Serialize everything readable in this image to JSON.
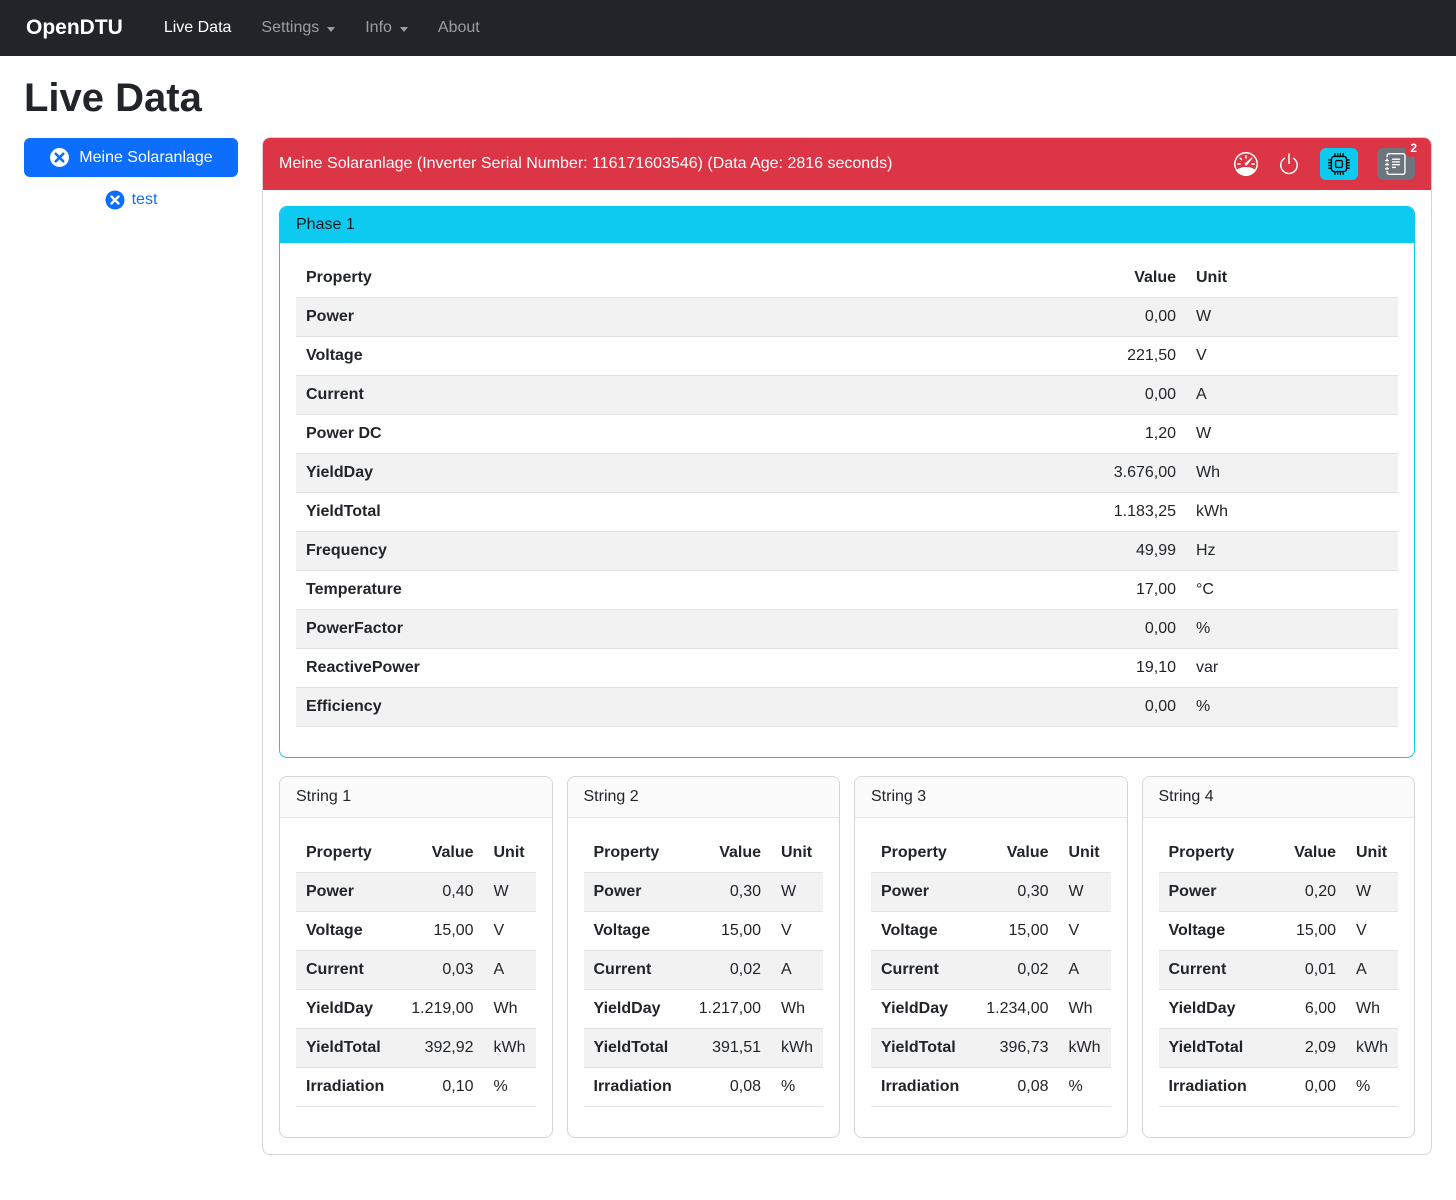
{
  "colors": {
    "navbar_bg": "#212529",
    "primary": "#0d6efd",
    "danger": "#dc3545",
    "info": "#0dcaf0",
    "secondary": "#6c757d",
    "stripe": "#f2f2f2"
  },
  "navbar": {
    "brand": "OpenDTU",
    "items": [
      {
        "label": "Live Data",
        "active": true,
        "dropdown": false
      },
      {
        "label": "Settings",
        "active": false,
        "dropdown": true
      },
      {
        "label": "Info",
        "active": false,
        "dropdown": true
      },
      {
        "label": "About",
        "active": false,
        "dropdown": false
      }
    ]
  },
  "page": {
    "title": "Live Data"
  },
  "sidebar": {
    "inverters": [
      {
        "label": "Meine Solaranlage",
        "selected": true,
        "icon": "x-circle-fill-icon"
      },
      {
        "label": "test",
        "selected": false,
        "icon": "x-circle-fill-icon"
      }
    ]
  },
  "inverter": {
    "header": "Meine Solaranlage (Inverter Serial Number: 116171603546) (Data Age: 2816 seconds)",
    "toolbar_icons": [
      "speedometer-icon",
      "power-icon",
      "cpu-icon",
      "journal-text-icon"
    ],
    "event_count": "2"
  },
  "phase": {
    "title": "Phase 1",
    "columns": {
      "property": "Property",
      "value": "Value",
      "unit": "Unit"
    },
    "rows": [
      {
        "property": "Power",
        "value": "0,00",
        "unit": "W"
      },
      {
        "property": "Voltage",
        "value": "221,50",
        "unit": "V"
      },
      {
        "property": "Current",
        "value": "0,00",
        "unit": "A"
      },
      {
        "property": "Power DC",
        "value": "1,20",
        "unit": "W"
      },
      {
        "property": "YieldDay",
        "value": "3.676,00",
        "unit": "Wh"
      },
      {
        "property": "YieldTotal",
        "value": "1.183,25",
        "unit": "kWh"
      },
      {
        "property": "Frequency",
        "value": "49,99",
        "unit": "Hz"
      },
      {
        "property": "Temperature",
        "value": "17,00",
        "unit": "°C"
      },
      {
        "property": "PowerFactor",
        "value": "0,00",
        "unit": "%"
      },
      {
        "property": "ReactivePower",
        "value": "19,10",
        "unit": "var"
      },
      {
        "property": "Efficiency",
        "value": "0,00",
        "unit": "%"
      }
    ]
  },
  "strings": [
    {
      "title": "String 1",
      "columns": {
        "property": "Property",
        "value": "Value",
        "unit": "Unit"
      },
      "rows": [
        {
          "property": "Power",
          "value": "0,40",
          "unit": "W"
        },
        {
          "property": "Voltage",
          "value": "15,00",
          "unit": "V"
        },
        {
          "property": "Current",
          "value": "0,03",
          "unit": "A"
        },
        {
          "property": "YieldDay",
          "value": "1.219,00",
          "unit": "Wh"
        },
        {
          "property": "YieldTotal",
          "value": "392,92",
          "unit": "kWh"
        },
        {
          "property": "Irradiation",
          "value": "0,10",
          "unit": "%"
        }
      ]
    },
    {
      "title": "String 2",
      "columns": {
        "property": "Property",
        "value": "Value",
        "unit": "Unit"
      },
      "rows": [
        {
          "property": "Power",
          "value": "0,30",
          "unit": "W"
        },
        {
          "property": "Voltage",
          "value": "15,00",
          "unit": "V"
        },
        {
          "property": "Current",
          "value": "0,02",
          "unit": "A"
        },
        {
          "property": "YieldDay",
          "value": "1.217,00",
          "unit": "Wh"
        },
        {
          "property": "YieldTotal",
          "value": "391,51",
          "unit": "kWh"
        },
        {
          "property": "Irradiation",
          "value": "0,08",
          "unit": "%"
        }
      ]
    },
    {
      "title": "String 3",
      "columns": {
        "property": "Property",
        "value": "Value",
        "unit": "Unit"
      },
      "rows": [
        {
          "property": "Power",
          "value": "0,30",
          "unit": "W"
        },
        {
          "property": "Voltage",
          "value": "15,00",
          "unit": "V"
        },
        {
          "property": "Current",
          "value": "0,02",
          "unit": "A"
        },
        {
          "property": "YieldDay",
          "value": "1.234,00",
          "unit": "Wh"
        },
        {
          "property": "YieldTotal",
          "value": "396,73",
          "unit": "kWh"
        },
        {
          "property": "Irradiation",
          "value": "0,08",
          "unit": "%"
        }
      ]
    },
    {
      "title": "String 4",
      "columns": {
        "property": "Property",
        "value": "Value",
        "unit": "Unit"
      },
      "rows": [
        {
          "property": "Power",
          "value": "0,20",
          "unit": "W"
        },
        {
          "property": "Voltage",
          "value": "15,00",
          "unit": "V"
        },
        {
          "property": "Current",
          "value": "0,01",
          "unit": "A"
        },
        {
          "property": "YieldDay",
          "value": "6,00",
          "unit": "Wh"
        },
        {
          "property": "YieldTotal",
          "value": "2,09",
          "unit": "kWh"
        },
        {
          "property": "Irradiation",
          "value": "0,00",
          "unit": "%"
        }
      ]
    }
  ]
}
